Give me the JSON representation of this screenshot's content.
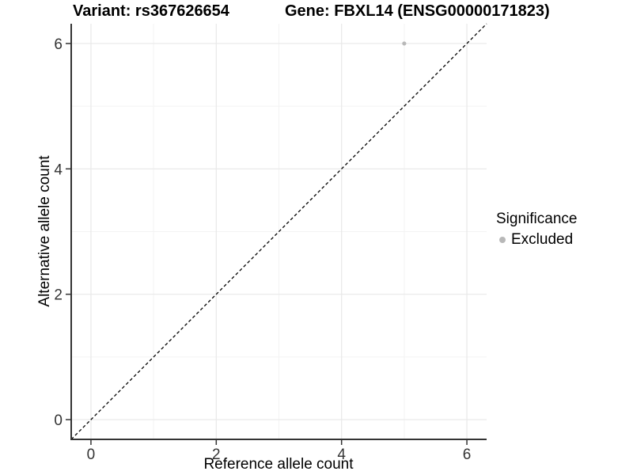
{
  "chart_data": {
    "type": "scatter",
    "title_left": "Variant: rs367626654",
    "title_right": "Gene: FBXL14 (ENSG00000171823)",
    "xlabel": "Reference allele count",
    "ylabel": "Alternative allele count",
    "points": [
      {
        "x": 5,
        "y": 6,
        "series": "Excluded"
      }
    ],
    "xticks": [
      0,
      2,
      4,
      6
    ],
    "yticks": [
      0,
      2,
      4,
      6
    ],
    "xlim": [
      -0.315,
      6.315
    ],
    "ylim": [
      -0.315,
      6.315
    ],
    "grid": "major-and-minor",
    "identity_line": {
      "equation": "y = x",
      "style": "dashed"
    },
    "legend": {
      "title": "Significance",
      "position": "right",
      "items": [
        {
          "label": "Excluded",
          "color": "#b8b8b8"
        }
      ]
    },
    "colors": {
      "point": "#b8b8b8",
      "grid_major": "#e8e8e8",
      "grid_minor": "#f3f3f3",
      "axis_line": "#333333",
      "tick_text": "#333333",
      "identity_line": "#000000",
      "background": "#ffffff"
    }
  }
}
